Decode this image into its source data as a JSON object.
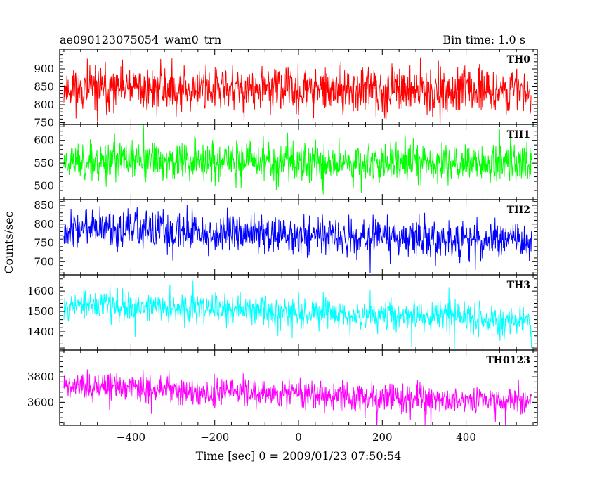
{
  "chart_data": {
    "type": "line",
    "title": "ae090123075054_wam0_trn",
    "subtitle": "Bin time: 1.0 s",
    "xlabel": "Time [sec] 0 = 2009/01/23 07:50:54",
    "ylabel": "Counts/sec",
    "xlim": [
      -570,
      570
    ],
    "x_ticks": [
      -400,
      -200,
      0,
      200,
      400
    ],
    "x_tick_labels": [
      "−400",
      "−200",
      "0",
      "200",
      "400"
    ],
    "x_range": [
      -560,
      556
    ],
    "grid": false,
    "panels": [
      {
        "name": "TH0",
        "color": "#ff0000",
        "ylim": [
          745,
          955
        ],
        "yticks": [
          750,
          800,
          850,
          900
        ],
        "base_start": 845,
        "base_end": 838,
        "amp": 38,
        "spike": 70,
        "seed": 11
      },
      {
        "name": "TH1",
        "color": "#00ff00",
        "ylim": [
          470,
          635
        ],
        "yticks": [
          500,
          550,
          600
        ],
        "base_start": 555,
        "base_end": 550,
        "amp": 26,
        "spike": 55,
        "seed": 23
      },
      {
        "name": "TH2",
        "color": "#0000ff",
        "ylim": [
          665,
          865
        ],
        "yticks": [
          700,
          750,
          800,
          850
        ],
        "base_start": 790,
        "base_end": 752,
        "amp": 30,
        "spike": 65,
        "seed": 37
      },
      {
        "name": "TH3",
        "color": "#00ffff",
        "ylim": [
          1310,
          1680
        ],
        "yticks": [
          1400,
          1500,
          1600
        ],
        "base_start": 1535,
        "base_end": 1460,
        "amp": 45,
        "spike": 110,
        "seed": 53
      },
      {
        "name": "TH0123",
        "color": "#ff00ff",
        "ylim": [
          3420,
          4010
        ],
        "yticks": [
          3600,
          3800
        ],
        "base_start": 3720,
        "base_end": 3600,
        "amp": 65,
        "spike": 160,
        "seed": 71
      }
    ]
  }
}
